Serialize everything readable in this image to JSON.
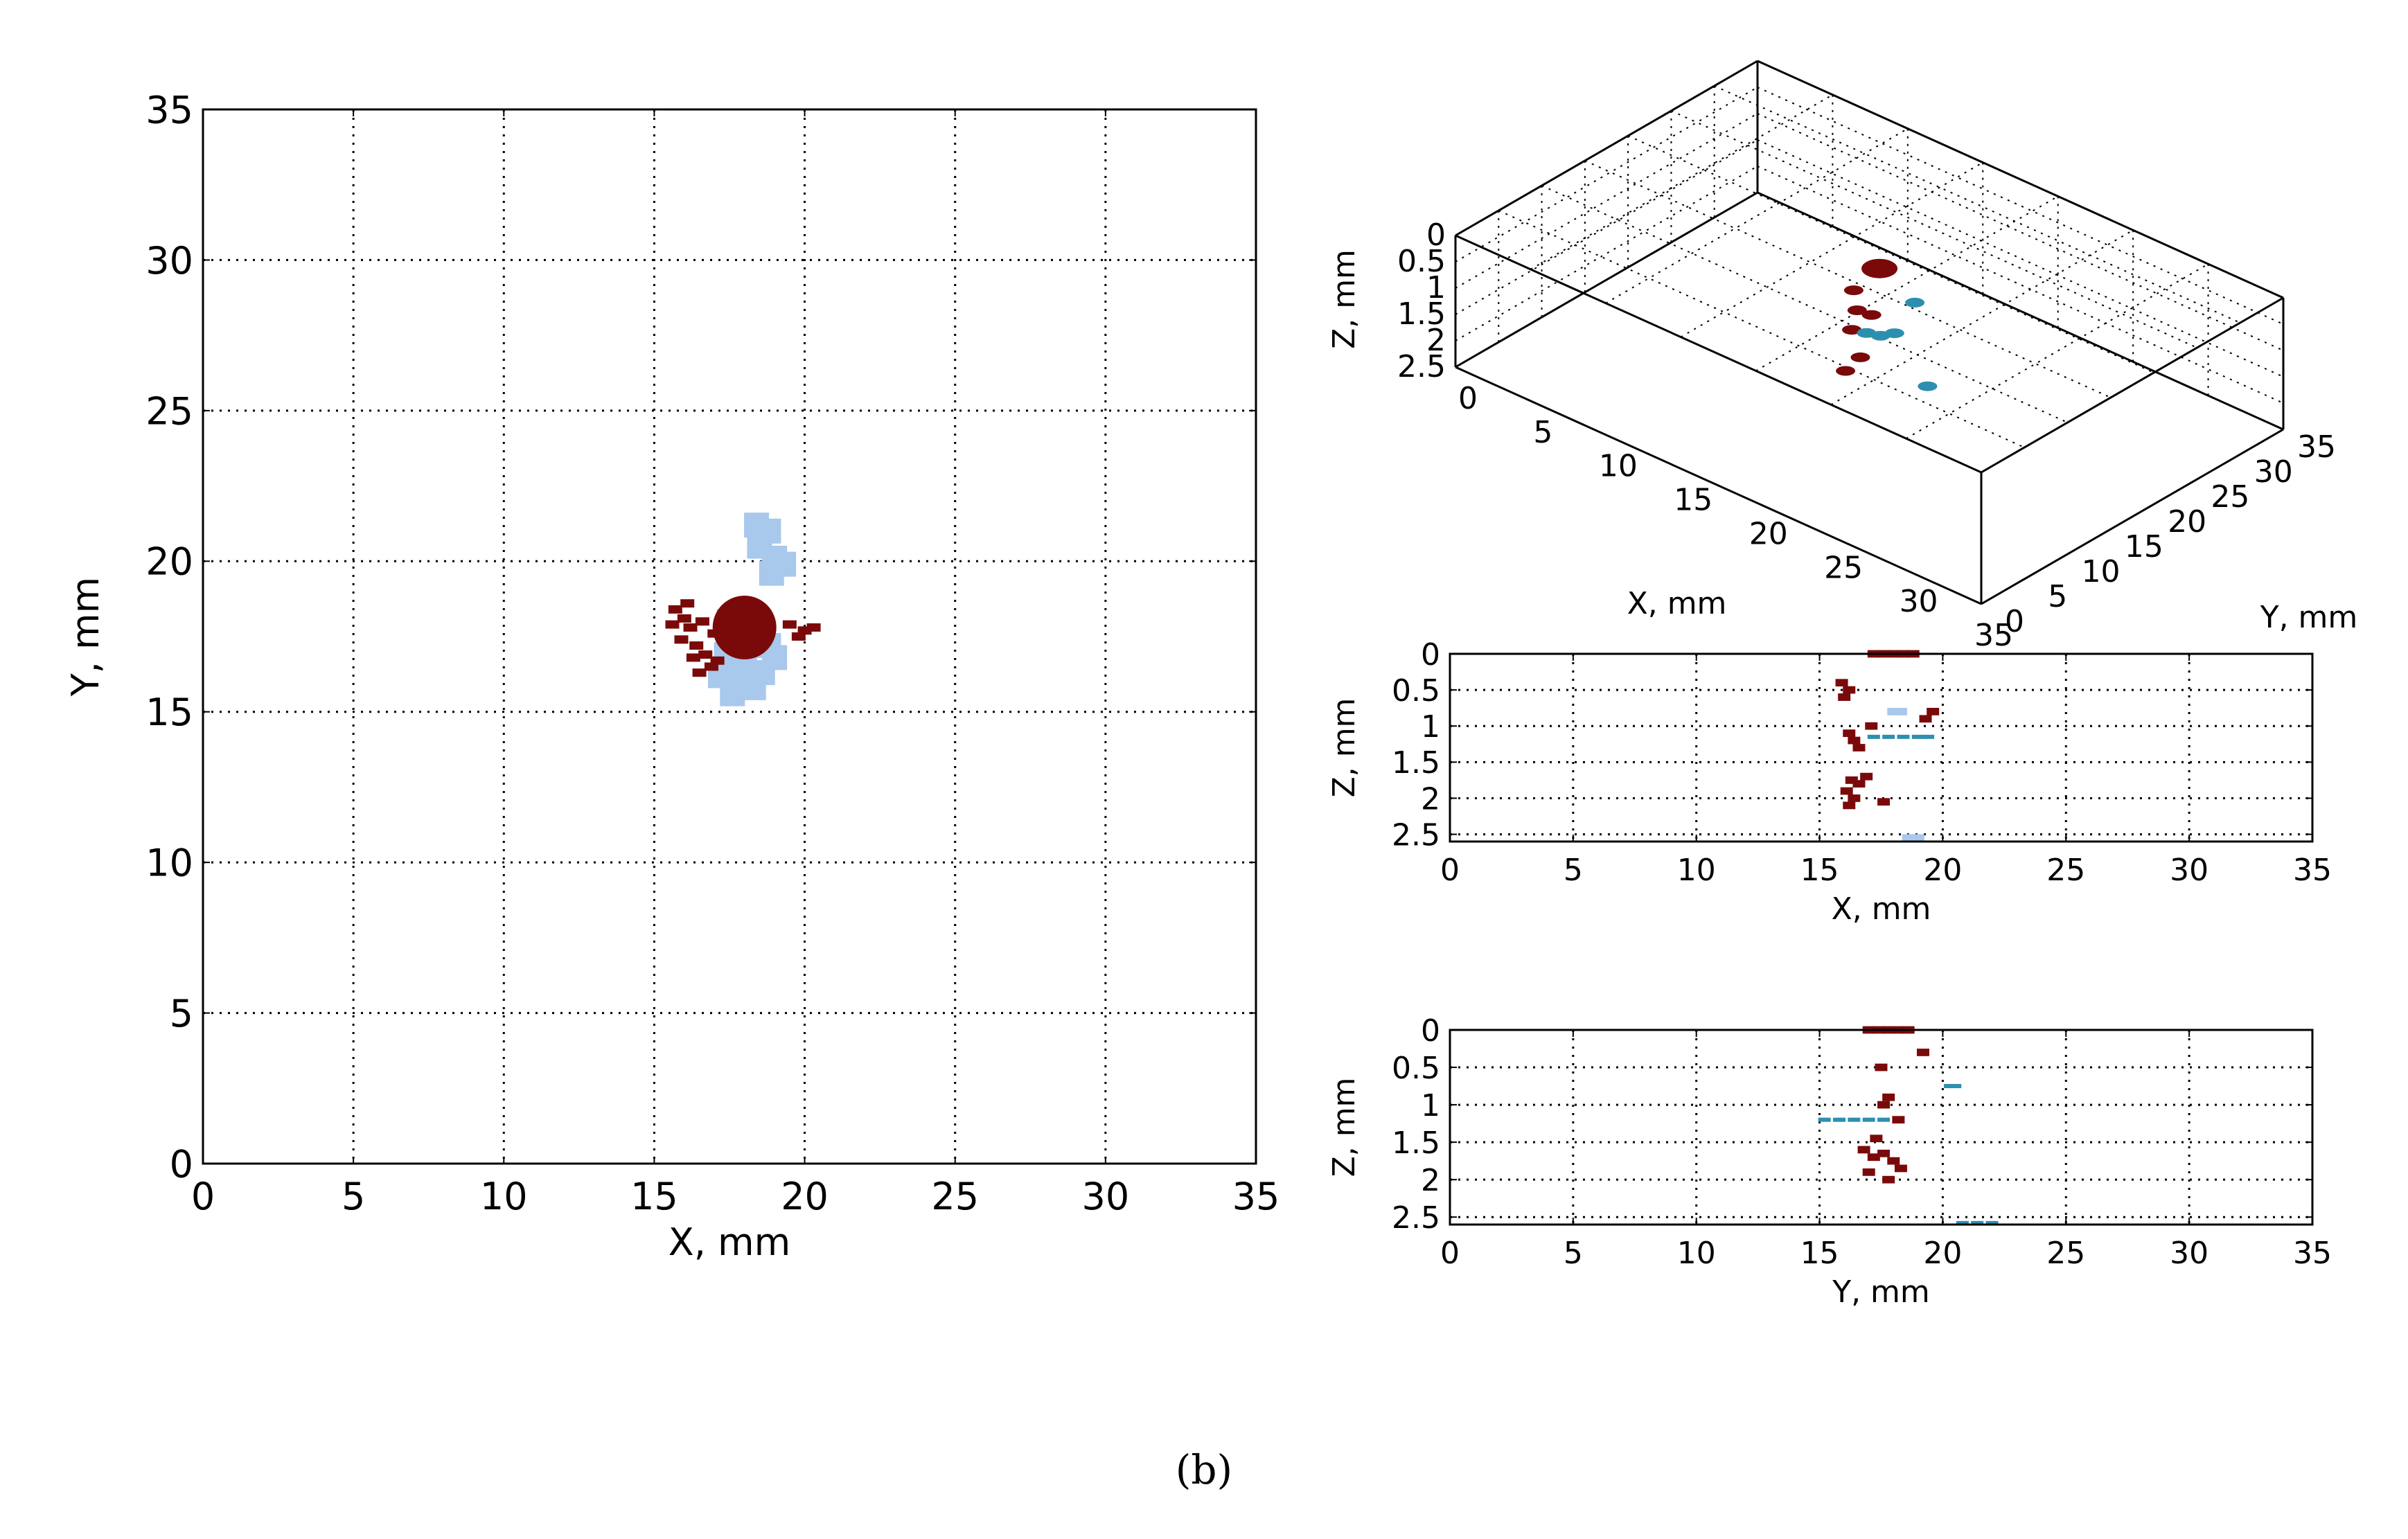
{
  "caption": "(b)",
  "colors": {
    "dark_red": "#7a0a0a",
    "light_blue": "#a8c8ec",
    "cyan": "#2d8fb0",
    "grid": "#000000",
    "axis": "#000000"
  },
  "chart_data": [
    {
      "id": "xy",
      "type": "scatter",
      "title": "",
      "xlabel": "X, mm",
      "ylabel": "Y, mm",
      "xlim": [
        0,
        35
      ],
      "ylim": [
        0,
        35
      ],
      "x_ticks": [
        0,
        5,
        10,
        15,
        20,
        25,
        30,
        35
      ],
      "y_ticks": [
        0,
        5,
        10,
        15,
        20,
        25,
        30,
        35
      ],
      "x_tick_labels": [
        "0",
        "5",
        "10",
        "15",
        "20",
        "25",
        "30",
        "35"
      ],
      "y_tick_labels": [
        "0",
        "5",
        "10",
        "15",
        "20",
        "25",
        "30",
        "35"
      ],
      "grid": true,
      "series": [
        {
          "name": "light-blue-region",
          "color": "#a8c8ec",
          "points": [
            [
              18.4,
              21.2
            ],
            [
              18.8,
              21.0
            ],
            [
              18.5,
              20.5
            ],
            [
              19.0,
              20.1
            ],
            [
              19.3,
              19.9
            ],
            [
              18.9,
              19.6
            ],
            [
              17.5,
              18.0
            ],
            [
              18.2,
              17.6
            ],
            [
              18.8,
              17.2
            ],
            [
              17.4,
              16.9
            ],
            [
              18.0,
              16.5
            ],
            [
              18.6,
              16.3
            ],
            [
              17.2,
              16.2
            ],
            [
              17.8,
              15.9
            ],
            [
              18.3,
              15.8
            ],
            [
              17.6,
              15.6
            ],
            [
              19.0,
              16.8
            ],
            [
              18.1,
              18.2
            ]
          ]
        },
        {
          "name": "dark-red-fragments",
          "color": "#7a0a0a",
          "points": [
            [
              15.7,
              18.4
            ],
            [
              16.0,
              18.1
            ],
            [
              16.2,
              17.8
            ],
            [
              15.9,
              17.4
            ],
            [
              16.4,
              17.2
            ],
            [
              16.7,
              16.9
            ],
            [
              16.9,
              16.5
            ],
            [
              16.3,
              16.8
            ],
            [
              16.1,
              18.6
            ],
            [
              16.6,
              18.0
            ],
            [
              17.0,
              17.6
            ],
            [
              19.5,
              17.9
            ],
            [
              20.0,
              17.7
            ],
            [
              20.3,
              17.8
            ],
            [
              19.8,
              17.5
            ],
            [
              16.5,
              16.3
            ],
            [
              17.1,
              16.7
            ],
            [
              15.6,
              17.9
            ]
          ]
        },
        {
          "name": "dark-red-disc",
          "color": "#7a0a0a",
          "points": [
            [
              18.0,
              17.8
            ]
          ]
        }
      ]
    },
    {
      "id": "xyz",
      "type": "scatter",
      "title": "",
      "xlabel": "X, mm",
      "ylabel": "Y, mm",
      "zlabel": "Z, mm",
      "xlim": [
        0,
        35
      ],
      "ylim": [
        0,
        35
      ],
      "zlim": [
        0,
        2.5
      ],
      "x_ticks": [
        0,
        5,
        10,
        15,
        20,
        25,
        30,
        35
      ],
      "y_ticks": [
        0,
        5,
        10,
        15,
        20,
        25,
        30,
        35
      ],
      "z_ticks": [
        0,
        0.5,
        1,
        1.5,
        2,
        2.5
      ],
      "x_tick_labels": [
        "0",
        "5",
        "10",
        "15",
        "20",
        "25",
        "30",
        "35"
      ],
      "y_tick_labels": [
        "0",
        "5",
        "10",
        "15",
        "20",
        "25",
        "30",
        "35"
      ],
      "z_tick_labels": [
        "0",
        "0.5",
        "1",
        "1.5",
        "2",
        "2.5"
      ],
      "grid": true,
      "series": [
        {
          "name": "dark-red-3d",
          "color": "#7a0a0a",
          "points": [
            [
              18.0,
              17.8,
              0.0
            ],
            [
              16.4,
              17.6,
              0.6
            ],
            [
              16.8,
              17.3,
              0.9
            ],
            [
              16.5,
              17.2,
              1.3
            ],
            [
              16.9,
              17.5,
              1.8
            ],
            [
              16.2,
              17.0,
              2.1
            ],
            [
              17.3,
              18.1,
              1.0
            ]
          ]
        },
        {
          "name": "blue-3d",
          "color": "#2d8fb0",
          "points": [
            [
              17.6,
              17.0,
              1.2
            ],
            [
              18.3,
              17.4,
              1.2
            ],
            [
              19.0,
              17.8,
              1.1
            ],
            [
              18.8,
              20.5,
              0.8
            ],
            [
              18.9,
              21.8,
              2.5
            ]
          ]
        }
      ]
    },
    {
      "id": "xz",
      "type": "scatter",
      "title": "",
      "xlabel": "X, mm",
      "ylabel": "Z, mm",
      "xlim": [
        0,
        35
      ],
      "ylim": [
        2.6,
        0
      ],
      "x_ticks": [
        0,
        5,
        10,
        15,
        20,
        25,
        30,
        35
      ],
      "y_ticks": [
        0,
        0.5,
        1,
        1.5,
        2,
        2.5
      ],
      "x_tick_labels": [
        "0",
        "5",
        "10",
        "15",
        "20",
        "25",
        "30",
        "35"
      ],
      "y_tick_labels": [
        "0",
        "0.5",
        "1",
        "1.5",
        "2",
        "2.5"
      ],
      "grid": true,
      "series": [
        {
          "name": "dark-red-xz",
          "color": "#7a0a0a",
          "points": [
            [
              17.2,
              0.0
            ],
            [
              17.6,
              0.0
            ],
            [
              18.0,
              0.0
            ],
            [
              18.4,
              0.0
            ],
            [
              18.8,
              0.0
            ],
            [
              15.9,
              0.4
            ],
            [
              16.0,
              0.6
            ],
            [
              16.2,
              0.5
            ],
            [
              19.6,
              0.8
            ],
            [
              19.3,
              0.9
            ],
            [
              16.4,
              1.2
            ],
            [
              16.6,
              1.3
            ],
            [
              16.2,
              1.1
            ],
            [
              17.1,
              1.0
            ],
            [
              16.3,
              1.75
            ],
            [
              16.6,
              1.8
            ],
            [
              16.9,
              1.7
            ],
            [
              16.1,
              1.9
            ],
            [
              16.4,
              2.0
            ],
            [
              16.2,
              2.1
            ],
            [
              17.6,
              2.05
            ]
          ]
        },
        {
          "name": "light-blue-xz",
          "color": "#a8c8ec",
          "points": [
            [
              18.0,
              0.8
            ],
            [
              18.3,
              0.8
            ],
            [
              18.6,
              2.55
            ],
            [
              19.0,
              2.55
            ]
          ]
        },
        {
          "name": "cyan-line-xz",
          "color": "#2d8fb0",
          "points": [
            [
              17.2,
              1.15
            ],
            [
              17.8,
              1.15
            ],
            [
              18.4,
              1.15
            ],
            [
              19.0,
              1.15
            ],
            [
              19.4,
              1.15
            ]
          ]
        }
      ]
    },
    {
      "id": "yz",
      "type": "scatter",
      "title": "",
      "xlabel": "Y, mm",
      "ylabel": "Z, mm",
      "xlim": [
        0,
        35
      ],
      "ylim": [
        2.6,
        0
      ],
      "x_ticks": [
        0,
        5,
        10,
        15,
        20,
        25,
        30,
        35
      ],
      "y_ticks": [
        0,
        0.5,
        1,
        1.5,
        2,
        2.5
      ],
      "x_tick_labels": [
        "0",
        "5",
        "10",
        "15",
        "20",
        "25",
        "30",
        "35"
      ],
      "y_tick_labels": [
        "0",
        "0.5",
        "1",
        "1.5",
        "2",
        "2.5"
      ],
      "grid": true,
      "series": [
        {
          "name": "dark-red-yz",
          "color": "#7a0a0a",
          "points": [
            [
              17.0,
              0.0
            ],
            [
              17.4,
              0.0
            ],
            [
              17.8,
              0.0
            ],
            [
              18.2,
              0.0
            ],
            [
              18.6,
              0.0
            ],
            [
              19.2,
              0.3
            ],
            [
              17.5,
              0.5
            ],
            [
              17.8,
              0.9
            ],
            [
              17.6,
              1.0
            ],
            [
              18.2,
              1.2
            ],
            [
              17.3,
              1.45
            ],
            [
              16.8,
              1.6
            ],
            [
              17.2,
              1.7
            ],
            [
              17.6,
              1.65
            ],
            [
              18.0,
              1.75
            ],
            [
              17.0,
              1.9
            ],
            [
              17.8,
              2.0
            ],
            [
              18.3,
              1.85
            ]
          ]
        },
        {
          "name": "cyan-line-yz",
          "color": "#2d8fb0",
          "points": [
            [
              15.2,
              1.2
            ],
            [
              15.8,
              1.2
            ],
            [
              16.4,
              1.2
            ],
            [
              17.0,
              1.2
            ],
            [
              17.6,
              1.2
            ],
            [
              20.3,
              0.75
            ],
            [
              20.5,
              0.75
            ]
          ]
        },
        {
          "name": "cyan-bottom-yz",
          "color": "#2d8fb0",
          "points": [
            [
              20.8,
              2.58
            ],
            [
              21.4,
              2.58
            ],
            [
              22.0,
              2.58
            ]
          ]
        }
      ]
    }
  ]
}
